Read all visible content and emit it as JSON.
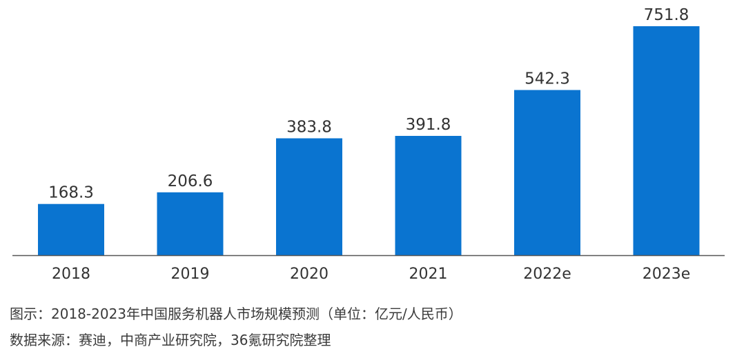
{
  "chart_data": {
    "type": "bar",
    "categories": [
      "2018",
      "2019",
      "2020",
      "2021",
      "2022e",
      "2023e"
    ],
    "values": [
      168.3,
      206.6,
      383.8,
      391.8,
      542.3,
      751.8
    ],
    "data_labels": [
      "168.3",
      "206.6",
      "383.8",
      "391.8",
      "542.3",
      "751.8"
    ],
    "title": "",
    "xlabel": "",
    "ylabel": "",
    "grid": false,
    "legend": "none",
    "bar_color": "#0a74d0",
    "axis_color": "#555555"
  },
  "caption": "图示：2018-2023年中国服务机器人市场规模预测（单位：亿元/人民币）",
  "source": "数据来源：赛迪，中商产业研究院，36氪研究院整理"
}
